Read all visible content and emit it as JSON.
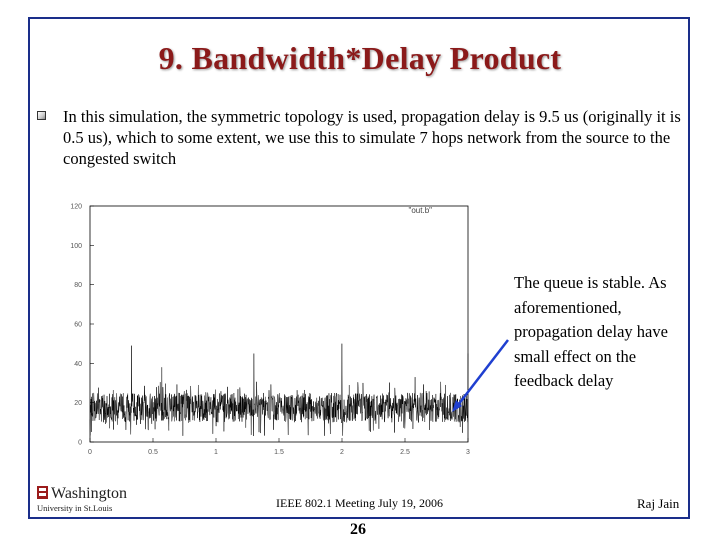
{
  "slide": {
    "title": "9. Bandwidth*Delay Product",
    "bullet_text": "In this simulation, the symmetric topology is used, propagation delay is 9.5 us (originally it is 0.5 us), which to some extent, we use this to simulate 7 hops network from the source to the congested switch",
    "callout": "The queue is stable. As aforementioned, propagation delay have small effect on the feedback delay",
    "footer_center": "IEEE 802.1 Meeting July 19, 2006",
    "footer_right": "Raj Jain",
    "page_number": "26",
    "logo": "Washington University in St. Louis",
    "colors": {
      "title": "#8b1a1a",
      "frame": "#1a2e8a",
      "arrow": "#1f3fd0"
    }
  },
  "chart_data": {
    "type": "line",
    "legend": "\"out.b\"",
    "xlim": [
      0,
      3
    ],
    "ylim": [
      0,
      120
    ],
    "x_ticks": [
      "0",
      "0.5",
      "1",
      "1.5",
      "2",
      "2.5",
      "3"
    ],
    "y_ticks": [
      "0",
      "20",
      "40",
      "60",
      "80",
      "100",
      "120"
    ],
    "series": [
      {
        "baseline": 17,
        "noise_band": [
          10,
          25
        ],
        "spikes": [
          [
            0.33,
            49
          ],
          [
            0.57,
            38
          ],
          [
            1.3,
            45
          ],
          [
            2.0,
            50
          ],
          [
            2.58,
            33
          ],
          [
            2.82,
            29
          ],
          [
            3.0,
            45
          ]
        ]
      }
    ]
  }
}
